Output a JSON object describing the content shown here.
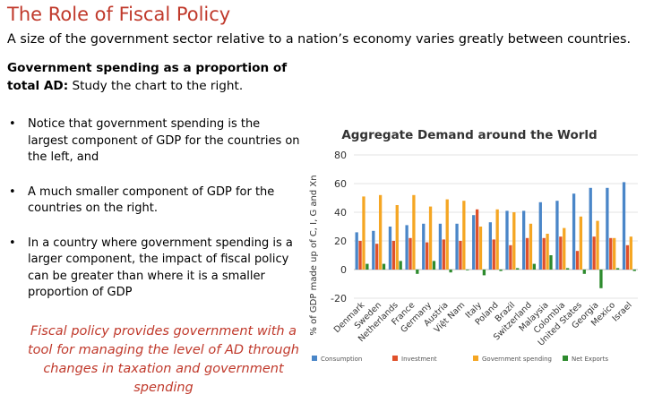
{
  "slide": {
    "title": "The Role of Fiscal Policy",
    "subtitle": "A size of the government sector relative to a nation’s economy varies greatly between countries.",
    "intro_bold": "Government spending as a proportion of total AD:",
    "intro_text": " Study the chart to the right.",
    "bullets": [
      "Notice that government spending is the largest component of GDP for the countries on the left, and",
      "A much smaller component of GDP for the countries on the right.",
      "In a country where government spending is a larger component, the impact of fiscal policy can be greater than where it is a smaller proportion of GDP"
    ],
    "callout": "Fiscal policy provides government with a tool for managing the level of AD through changes in taxation and government spending"
  },
  "chart_data": {
    "type": "bar",
    "title": "Aggregate Demand around the World",
    "ylabel": "% of GDP made up of C, I, G and Xn",
    "ylim": [
      -20,
      80
    ],
    "yticks": [
      -20,
      0,
      20,
      40,
      60,
      80
    ],
    "legend_position": "bottom",
    "categories": [
      "Denmark",
      "Sweden",
      "Netherlands",
      "France",
      "Germany",
      "Austria",
      "Việt Nam",
      "Italy",
      "Poland",
      "Brazil",
      "Switzerland",
      "Malaysia",
      "Colombia",
      "United States",
      "Georgia",
      "Mexico",
      "Israel"
    ],
    "series": [
      {
        "name": "Consumption",
        "color": "#4a86c8",
        "values": [
          26,
          27,
          30,
          31,
          32,
          32,
          32,
          38,
          33,
          41,
          41,
          47,
          48,
          53,
          57,
          57,
          61
        ]
      },
      {
        "name": "Investment",
        "color": "#e0502a",
        "values": [
          20,
          18,
          20,
          22,
          19,
          21,
          20,
          42,
          21,
          17,
          22,
          22,
          23,
          13,
          23,
          22,
          17
        ]
      },
      {
        "name": "Government spending",
        "color": "#f5a623",
        "values": [
          51,
          52,
          45,
          52,
          44,
          49,
          48,
          30,
          42,
          40,
          32,
          25,
          29,
          37,
          34,
          22,
          23
        ]
      },
      {
        "name": "Net Exports",
        "color": "#2e8b2e",
        "values": [
          4,
          4,
          6,
          -3,
          6,
          -2,
          0,
          -4,
          -1,
          1,
          4,
          10,
          1,
          -3,
          -13,
          1,
          -1
        ]
      }
    ]
  }
}
